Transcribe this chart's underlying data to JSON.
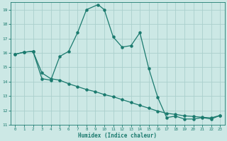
{
  "xlabel": "Humidex (Indice chaleur)",
  "xlim": [
    -0.5,
    23.5
  ],
  "ylim": [
    11,
    19.5
  ],
  "yticks": [
    11,
    12,
    13,
    14,
    15,
    16,
    17,
    18,
    19
  ],
  "xticks": [
    0,
    1,
    2,
    3,
    4,
    5,
    6,
    7,
    8,
    9,
    10,
    11,
    12,
    13,
    14,
    15,
    16,
    17,
    18,
    19,
    20,
    21,
    22,
    23
  ],
  "line_color": "#1a7a6e",
  "bg_color": "#cce8e5",
  "grid_color": "#aacfcc",
  "line1_x": [
    0,
    1,
    2,
    3,
    4,
    5,
    6,
    7,
    8,
    9.3,
    10,
    11,
    12,
    13,
    14,
    15,
    16,
    17,
    18,
    19,
    20,
    21,
    22,
    23
  ],
  "line1_y": [
    15.9,
    16.05,
    16.1,
    14.2,
    14.1,
    15.75,
    16.1,
    17.4,
    19.0,
    19.35,
    19.0,
    17.1,
    16.4,
    16.5,
    17.4,
    14.9,
    12.9,
    11.5,
    11.6,
    11.4,
    11.4,
    11.5,
    11.4,
    11.65
  ],
  "line2_x": [
    0,
    1,
    2,
    3,
    4,
    5,
    6,
    7,
    8,
    9,
    10,
    11,
    12,
    13,
    14,
    15,
    16,
    17,
    18,
    19,
    20,
    21,
    22,
    23
  ],
  "line2_y": [
    15.9,
    16.05,
    16.1,
    14.6,
    14.2,
    14.1,
    13.85,
    13.65,
    13.45,
    13.3,
    13.1,
    12.95,
    12.75,
    12.55,
    12.35,
    12.15,
    11.95,
    11.8,
    11.72,
    11.62,
    11.58,
    11.52,
    11.48,
    11.65
  ]
}
